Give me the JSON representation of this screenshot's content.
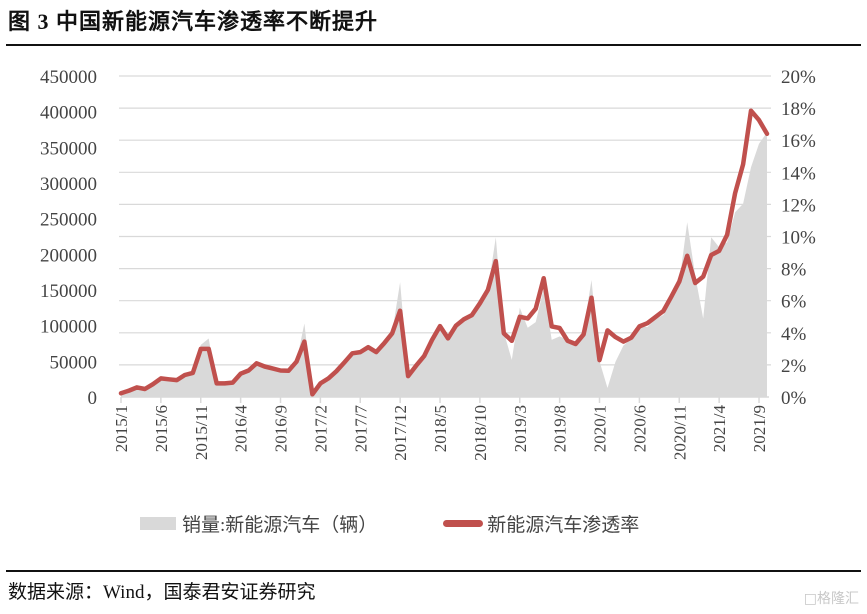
{
  "title": "图  3 中国新能源汽车渗透率不断提升",
  "source": "数据来源：Wind，国泰君安证券研究",
  "watermark": "格隆汇",
  "chart_data": {
    "type": "area+line",
    "title": "",
    "grid": true,
    "legend_placement": "bottom",
    "left_axis": {
      "ylim": [
        0,
        450000
      ],
      "ticks": [
        "0",
        "50000",
        "100000",
        "150000",
        "200000",
        "250000",
        "300000",
        "350000",
        "400000",
        "450000"
      ]
    },
    "right_axis": {
      "ylim": [
        0,
        20
      ],
      "unit": "%",
      "ticks": [
        "0%",
        "2%",
        "4%",
        "6%",
        "8%",
        "10%",
        "12%",
        "14%",
        "16%",
        "18%",
        "20%"
      ]
    },
    "x_tick_labels": [
      "2015/1",
      "2015/6",
      "2015/11",
      "2016/4",
      "2016/9",
      "2017/2",
      "2017/7",
      "2017/12",
      "2018/5",
      "2018/10",
      "2019/3",
      "2019/8",
      "2020/1",
      "2020/6",
      "2020/11",
      "2021/4",
      "2021/9"
    ],
    "categories": [
      "2015/1",
      "2015/2",
      "2015/3",
      "2015/4",
      "2015/5",
      "2015/6",
      "2015/7",
      "2015/8",
      "2015/9",
      "2015/10",
      "2015/11",
      "2015/12",
      "2016/1",
      "2016/2",
      "2016/3",
      "2016/4",
      "2016/5",
      "2016/6",
      "2016/7",
      "2016/8",
      "2016/9",
      "2016/10",
      "2016/11",
      "2016/12",
      "2017/1",
      "2017/2",
      "2017/3",
      "2017/4",
      "2017/5",
      "2017/6",
      "2017/7",
      "2017/8",
      "2017/9",
      "2017/10",
      "2017/11",
      "2017/12",
      "2018/1",
      "2018/2",
      "2018/3",
      "2018/4",
      "2018/5",
      "2018/6",
      "2018/7",
      "2018/8",
      "2018/9",
      "2018/10",
      "2018/11",
      "2018/12",
      "2019/1",
      "2019/2",
      "2019/3",
      "2019/4",
      "2019/5",
      "2019/6",
      "2019/7",
      "2019/8",
      "2019/9",
      "2019/10",
      "2019/11",
      "2019/12",
      "2020/1",
      "2020/2",
      "2020/3",
      "2020/4",
      "2020/5",
      "2020/6",
      "2020/7",
      "2020/8",
      "2020/9",
      "2020/10",
      "2020/11",
      "2020/12",
      "2021/1",
      "2021/2",
      "2021/3",
      "2021/4",
      "2021/5",
      "2021/6",
      "2021/7",
      "2021/8",
      "2021/9",
      "2021/10"
    ],
    "series": [
      {
        "name": "销量:新能源汽车（辆）",
        "type": "area",
        "axis": "left",
        "color": "#d9d9d9",
        "values": [
          6000,
          9000,
          13000,
          11000,
          18000,
          26000,
          24000,
          23000,
          31000,
          34000,
          73000,
          82000,
          17000,
          17000,
          20000,
          31000,
          38000,
          47000,
          42000,
          40000,
          37000,
          37000,
          50000,
          103000,
          4000,
          19000,
          27000,
          36000,
          48000,
          61000,
          63000,
          70000,
          62000,
          76000,
          90000,
          161000,
          30000,
          45000,
          57000,
          80000,
          100000,
          82000,
          100000,
          109000,
          115000,
          132000,
          150000,
          224000,
          91000,
          52000,
          125000,
          97000,
          105000,
          152000,
          80000,
          85000,
          80000,
          75000,
          95000,
          164000,
          50000,
          12600,
          49500,
          72000,
          82000,
          100000,
          98000,
          109000,
          115000,
          136000,
          160000,
          245000,
          170000,
          110000,
          224000,
          210000,
          217000,
          259000,
          271000,
          322000,
          355000,
          371000
        ]
      },
      {
        "name": "新能源汽车渗透率",
        "type": "line",
        "axis": "right",
        "color": "#c0504d",
        "values": [
          0.23,
          0.4,
          0.6,
          0.5,
          0.8,
          1.16,
          1.1,
          1.05,
          1.37,
          1.5,
          3.0,
          3.0,
          0.85,
          0.85,
          0.9,
          1.45,
          1.65,
          2.1,
          1.9,
          1.78,
          1.65,
          1.63,
          2.2,
          3.45,
          0.17,
          0.85,
          1.16,
          1.6,
          2.15,
          2.72,
          2.8,
          3.1,
          2.8,
          3.35,
          3.97,
          5.38,
          1.3,
          1.95,
          2.55,
          3.55,
          4.42,
          3.65,
          4.45,
          4.84,
          5.1,
          5.84,
          6.67,
          8.47,
          3.97,
          3.5,
          5.0,
          4.9,
          5.5,
          7.4,
          4.4,
          4.3,
          3.5,
          3.3,
          3.9,
          6.19,
          2.3,
          4.15,
          3.73,
          3.45,
          3.7,
          4.4,
          4.6,
          4.98,
          5.35,
          6.25,
          7.19,
          8.8,
          7.1,
          7.5,
          8.85,
          9.1,
          10.1,
          12.7,
          14.5,
          17.84,
          17.25,
          16.4
        ]
      }
    ]
  }
}
